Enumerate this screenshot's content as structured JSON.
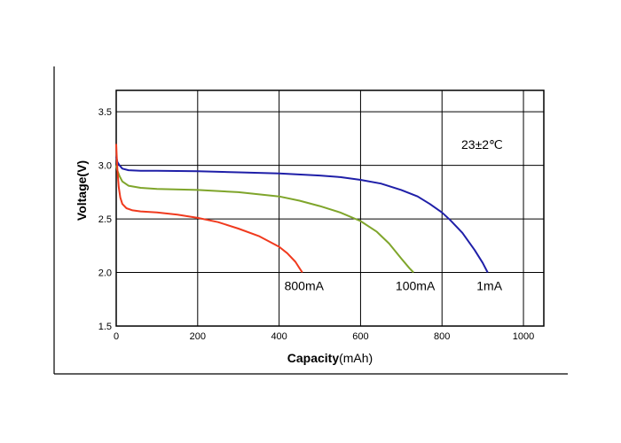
{
  "chart_data": {
    "type": "line",
    "xlabel_bold": "Capacity",
    "xlabel_unit": "(mAh)",
    "ylabel": "Voltage(V)",
    "annotation": "23±2℃",
    "xlim": [
      0,
      1050
    ],
    "ylim": [
      1.5,
      3.7
    ],
    "x_ticks": [
      0,
      200,
      400,
      600,
      800,
      1000
    ],
    "y_ticks": [
      1.5,
      2.0,
      2.5,
      3.0,
      3.5
    ],
    "x_tick_labels": [
      "0",
      "200",
      "400",
      "600",
      "800",
      "1000"
    ],
    "y_tick_labels": [
      "1.5",
      "2.0",
      "2.5",
      "3.0",
      "3.5"
    ],
    "grid": true,
    "series": [
      {
        "name": "1mA",
        "color": "#1f1fa8",
        "x": [
          0,
          3,
          8,
          15,
          30,
          60,
          100,
          200,
          300,
          400,
          500,
          550,
          600,
          650,
          700,
          740,
          770,
          800,
          820,
          850,
          880,
          900,
          912
        ],
        "y": [
          3.08,
          3.03,
          3.0,
          2.97,
          2.955,
          2.95,
          2.95,
          2.945,
          2.935,
          2.925,
          2.905,
          2.89,
          2.865,
          2.83,
          2.77,
          2.71,
          2.64,
          2.56,
          2.49,
          2.37,
          2.21,
          2.09,
          2.0
        ]
      },
      {
        "name": "100mA",
        "color": "#7fa52b",
        "x": [
          0,
          3,
          8,
          15,
          30,
          60,
          100,
          200,
          300,
          400,
          450,
          500,
          550,
          600,
          640,
          670,
          700,
          720,
          730
        ],
        "y": [
          3.0,
          2.95,
          2.9,
          2.85,
          2.81,
          2.79,
          2.78,
          2.77,
          2.75,
          2.71,
          2.67,
          2.62,
          2.56,
          2.48,
          2.38,
          2.27,
          2.13,
          2.04,
          2.0
        ]
      },
      {
        "name": "800mA",
        "color": "#f03a1e",
        "x": [
          0,
          1,
          3,
          6,
          10,
          15,
          25,
          40,
          60,
          100,
          150,
          200,
          250,
          300,
          350,
          400,
          420,
          440,
          450,
          457
        ],
        "y": [
          3.2,
          3.1,
          2.95,
          2.8,
          2.7,
          2.64,
          2.6,
          2.58,
          2.57,
          2.56,
          2.54,
          2.51,
          2.47,
          2.41,
          2.34,
          2.24,
          2.18,
          2.1,
          2.04,
          2.0
        ]
      }
    ]
  }
}
